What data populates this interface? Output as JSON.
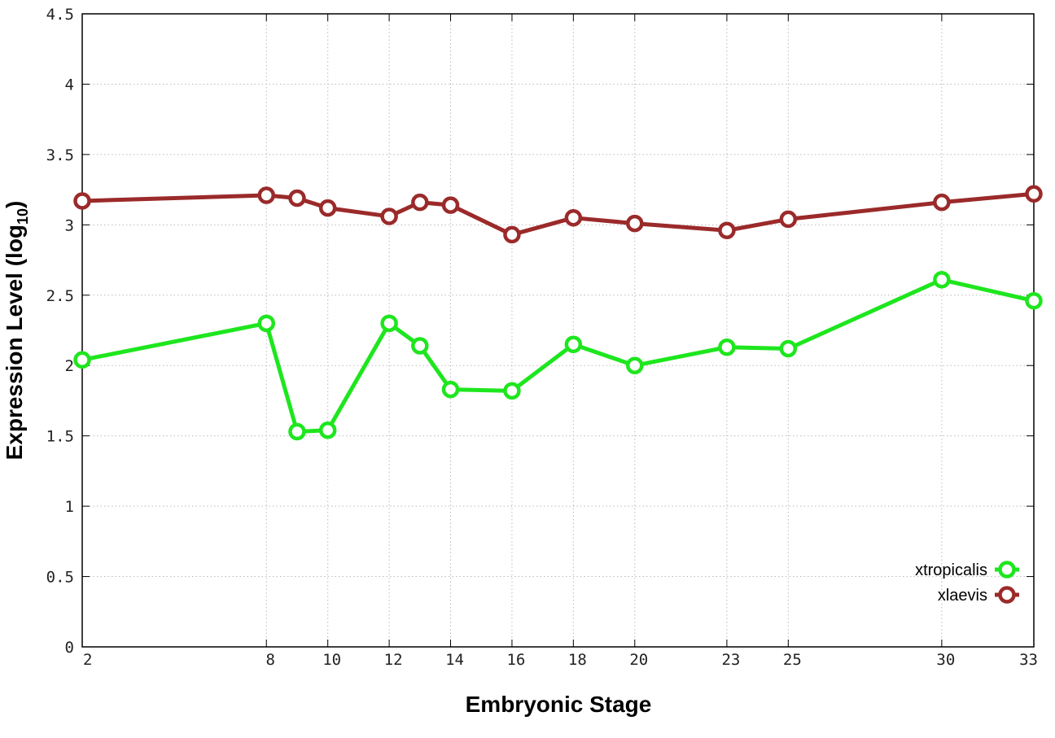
{
  "chart_data": {
    "type": "line",
    "xlabel": "Embryonic Stage",
    "ylabel": "Expression Level (log",
    "ylabel_sub": "10",
    "ylabel_suffix": ")",
    "x_categories": [
      "2",
      "8",
      "9",
      "10",
      "12",
      "13",
      "14",
      "16",
      "18",
      "20",
      "23",
      "25",
      "30",
      "33"
    ],
    "x_tick_labels": [
      "2",
      "8",
      "10",
      "12",
      "14",
      "16",
      "18",
      "20",
      "23",
      "25",
      "30",
      "33"
    ],
    "ylim": [
      0,
      4.5
    ],
    "y_ticks": [
      "0",
      "0.5",
      "1",
      "1.5",
      "2",
      "2.5",
      "3",
      "3.5",
      "4",
      "4.5"
    ],
    "grid": true,
    "legend_position": "bottom-right",
    "series": [
      {
        "name": "xtropicalis",
        "color": "#1ee61e",
        "values": [
          2.04,
          2.3,
          1.53,
          1.54,
          2.3,
          2.14,
          1.83,
          1.82,
          2.15,
          2.0,
          2.13,
          2.12,
          2.61,
          2.46
        ]
      },
      {
        "name": "xlaevis",
        "color": "#9b2a2a",
        "values": [
          3.17,
          3.21,
          3.19,
          3.12,
          3.06,
          3.16,
          3.14,
          2.93,
          3.05,
          3.01,
          2.96,
          3.04,
          3.16,
          3.22
        ]
      }
    ]
  }
}
